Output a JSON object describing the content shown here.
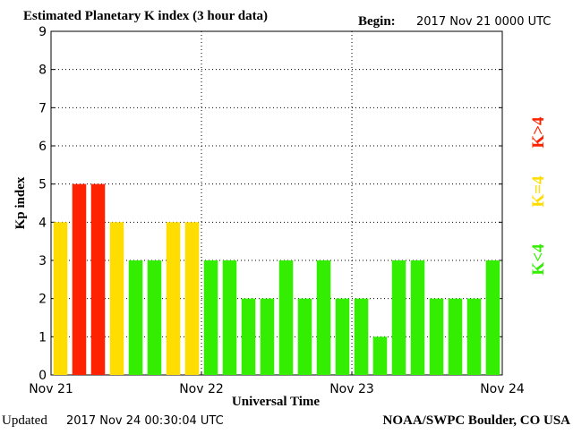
{
  "header": {
    "title": "Estimated Planetary K index (3 hour data)",
    "begin_label": "Begin:",
    "begin_value": "2017 Nov 21 0000 UTC"
  },
  "footer": {
    "updated_label": "Updated",
    "updated_value": "2017 Nov 24 00:30:04 UTC",
    "source": "NOAA/SWPC Boulder, CO USA"
  },
  "legend": [
    {
      "label": "K<4",
      "color": "#33ee00"
    },
    {
      "label": "K=4",
      "color": "#ffdd00"
    },
    {
      "label": "K>4",
      "color": "#ff2200"
    }
  ],
  "chart_data": {
    "type": "bar",
    "ylabel": "Kp index",
    "xlabel": "Universal Time",
    "ylim": [
      0,
      9
    ],
    "yticks": [
      0,
      1,
      2,
      3,
      4,
      5,
      6,
      7,
      8,
      9
    ],
    "xtick_labels": [
      "Nov 21",
      "Nov 22",
      "Nov 23",
      "Nov 24"
    ],
    "grid": true,
    "colors": {
      "low": "#33ee00",
      "equal": "#ffdd00",
      "high": "#ff2200"
    },
    "values": [
      4,
      5,
      5,
      4,
      3,
      3,
      4,
      4,
      3,
      3,
      2,
      2,
      3,
      2,
      3,
      2,
      2,
      1,
      3,
      3,
      2,
      2,
      2,
      3
    ]
  }
}
